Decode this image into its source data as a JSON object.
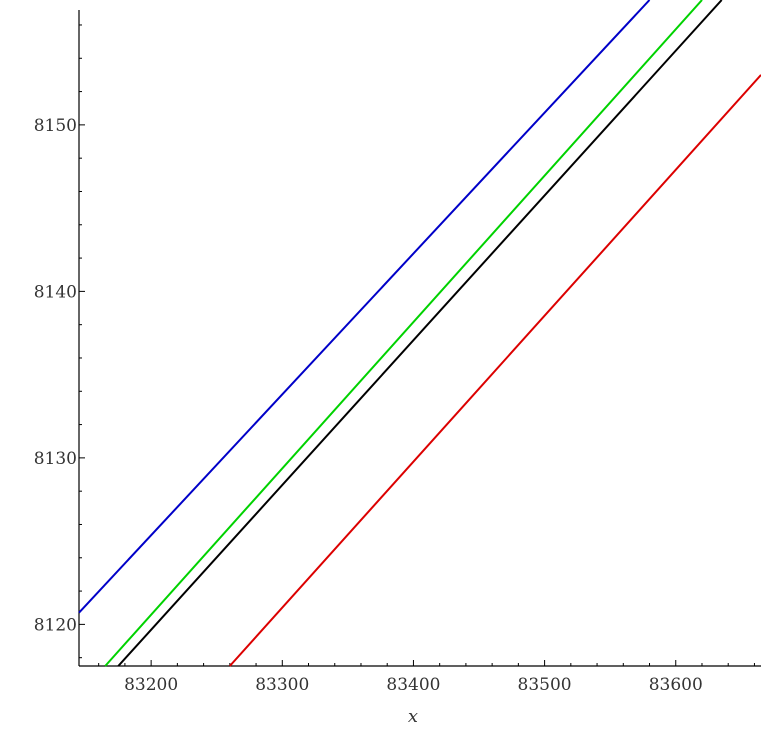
{
  "chart_data": {
    "type": "line",
    "title": "",
    "xlabel": "x",
    "ylabel": "",
    "xlim": [
      83145,
      83665
    ],
    "ylim": [
      8117.5,
      8157.5
    ],
    "x_ticks": [
      83200,
      83300,
      83400,
      83500,
      83600
    ],
    "y_ticks": [
      8120,
      8130,
      8140,
      8150
    ],
    "grid": false,
    "legend": "none",
    "series": [
      {
        "color": "#0000c8",
        "x": [
          83145,
          83580
        ],
        "y": [
          8120.7,
          8157.5
        ]
      },
      {
        "color": "#00d200",
        "x": [
          83165,
          83620
        ],
        "y": [
          8117.5,
          8157.5
        ]
      },
      {
        "color": "#000000",
        "x": [
          83175,
          83635
        ],
        "y": [
          8117.5,
          8157.5
        ]
      },
      {
        "color": "#dc0000",
        "x": [
          83260,
          83665
        ],
        "y": [
          8117.5,
          8153.0
        ]
      }
    ]
  }
}
